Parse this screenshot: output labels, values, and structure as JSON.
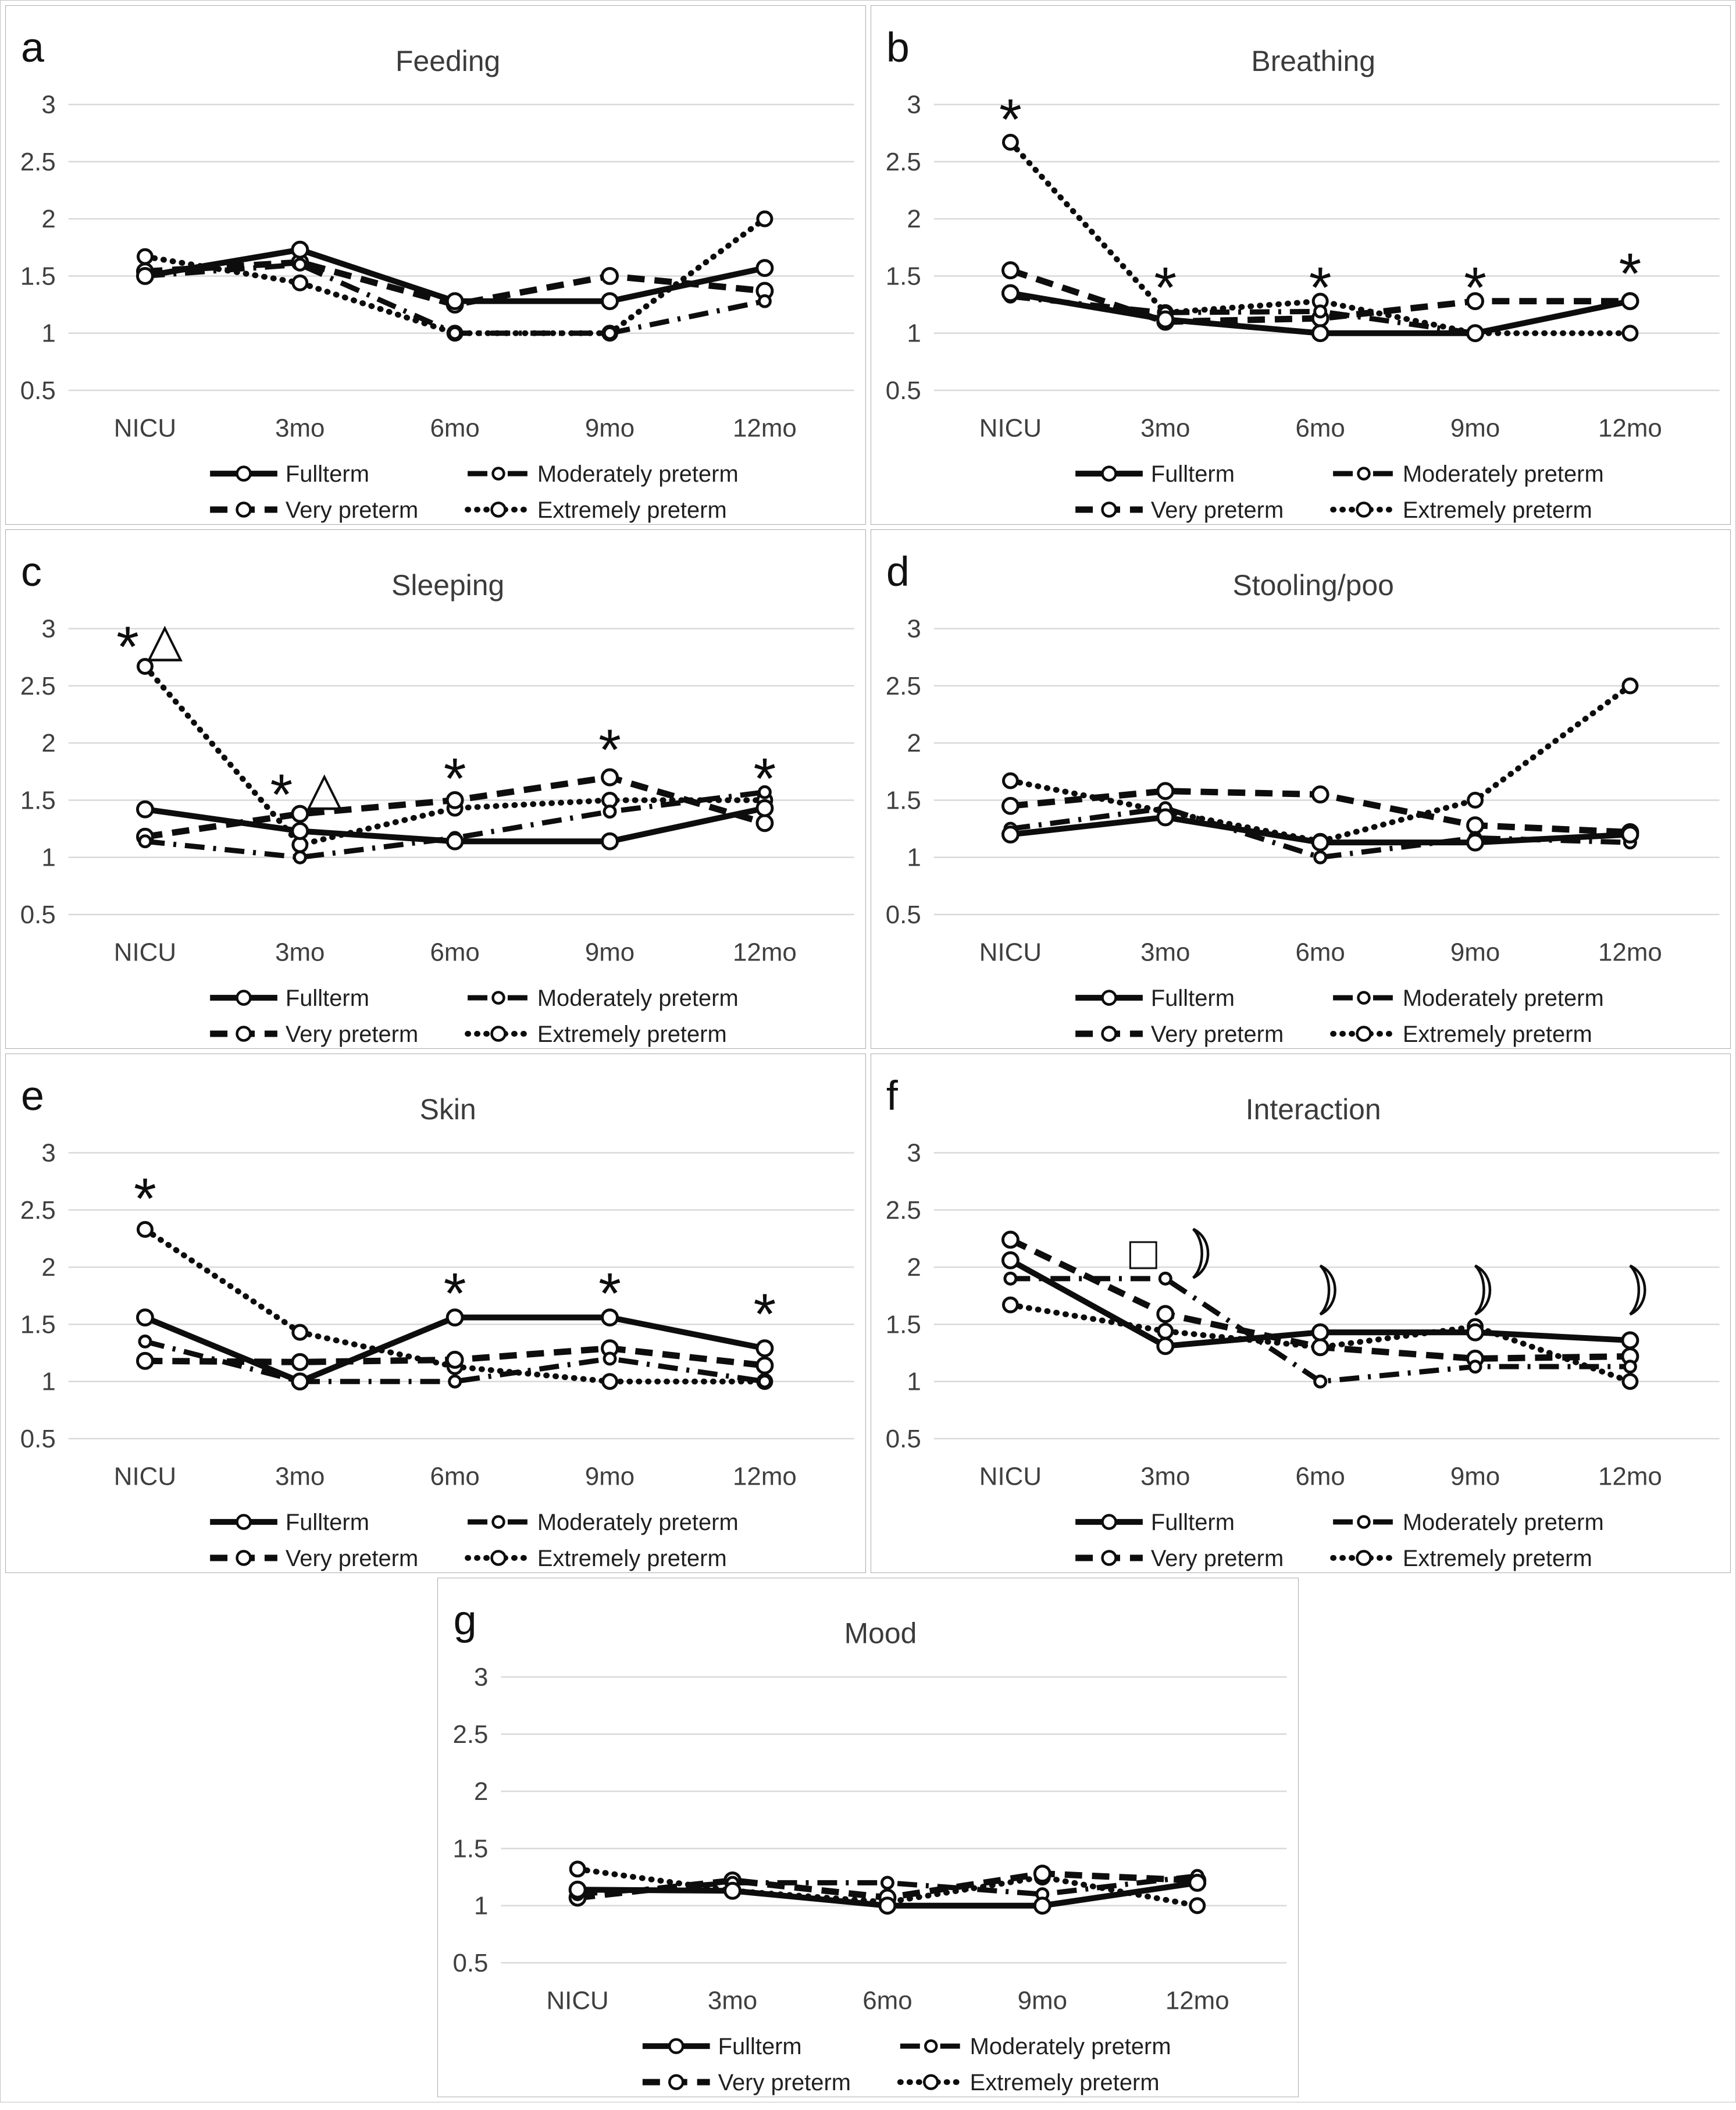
{
  "figure": {
    "y_ticks": [
      "3",
      "2.5",
      "2",
      "1.5",
      "1",
      "0.5"
    ],
    "y_tick_values": [
      3,
      2.5,
      2,
      1.5,
      1,
      0.5
    ],
    "categories": [
      "NICU",
      "3mo",
      "6mo",
      "9mo",
      "12mo"
    ],
    "marker": "open-circle",
    "line_color": "#0d0d0d",
    "gridline_color": "#d9d9d9",
    "legend": [
      {
        "key": "fullterm",
        "label": "Fullterm",
        "line_style": "solid"
      },
      {
        "key": "moderately-preterm",
        "label": "Moderately preterm",
        "line_style": "dash-dot"
      },
      {
        "key": "very-preterm",
        "label": "Very preterm",
        "line_style": "dashed"
      },
      {
        "key": "extremely-preterm",
        "label": "Extremely preterm",
        "line_style": "dotted"
      }
    ]
  },
  "chart_data": [
    {
      "panel": "a",
      "title": "Feeding",
      "type": "line",
      "ylim": [
        0.5,
        3
      ],
      "grid": true,
      "categories": [
        "NICU",
        "3mo",
        "6mo",
        "9mo",
        "12mo"
      ],
      "series": [
        {
          "name": "Fullterm",
          "line_style": "solid",
          "values": [
            1.5,
            1.73,
            1.28,
            1.28,
            1.57
          ]
        },
        {
          "name": "Moderately preterm",
          "line_style": "dash-dot",
          "values": [
            1.5,
            1.6,
            1.0,
            1.0,
            1.28
          ]
        },
        {
          "name": "Very preterm",
          "line_style": "dashed",
          "values": [
            1.54,
            1.62,
            1.25,
            1.5,
            1.37
          ]
        },
        {
          "name": "Extremely preterm",
          "line_style": "dotted",
          "values": [
            1.67,
            1.44,
            1.0,
            1.0,
            2.0
          ]
        }
      ],
      "annotations": []
    },
    {
      "panel": "b",
      "title": "Breathing",
      "type": "line",
      "ylim": [
        0.5,
        3
      ],
      "grid": true,
      "categories": [
        "NICU",
        "3mo",
        "6mo",
        "9mo",
        "12mo"
      ],
      "series": [
        {
          "name": "Fullterm",
          "line_style": "solid",
          "values": [
            1.35,
            1.12,
            1.0,
            1.0,
            1.28
          ]
        },
        {
          "name": "Moderately preterm",
          "line_style": "dash-dot",
          "values": [
            1.32,
            1.18,
            1.19,
            1.0,
            1.28
          ]
        },
        {
          "name": "Very preterm",
          "line_style": "dashed",
          "values": [
            1.55,
            1.1,
            1.13,
            1.28,
            1.28
          ]
        },
        {
          "name": "Extremely preterm",
          "line_style": "dotted",
          "values": [
            2.67,
            1.18,
            1.28,
            1.0,
            1.0
          ]
        }
      ],
      "annotations": [
        {
          "category_index": 0,
          "symbol": "*",
          "value": 2.95
        },
        {
          "category_index": 1,
          "symbol": "*",
          "value": 1.48
        },
        {
          "category_index": 2,
          "symbol": "*",
          "value": 1.48
        },
        {
          "category_index": 3,
          "symbol": "*",
          "value": 1.48
        },
        {
          "category_index": 4,
          "symbol": "*",
          "value": 1.6
        }
      ]
    },
    {
      "panel": "c",
      "title": "Sleeping",
      "type": "line",
      "ylim": [
        0.5,
        3
      ],
      "grid": true,
      "categories": [
        "NICU",
        "3mo",
        "6mo",
        "9mo",
        "12mo"
      ],
      "series": [
        {
          "name": "Fullterm",
          "line_style": "solid",
          "values": [
            1.42,
            1.23,
            1.14,
            1.14,
            1.43
          ]
        },
        {
          "name": "Moderately preterm",
          "line_style": "dash-dot",
          "values": [
            1.14,
            1.0,
            1.17,
            1.4,
            1.57
          ]
        },
        {
          "name": "Very preterm",
          "line_style": "dashed",
          "values": [
            1.18,
            1.38,
            1.5,
            1.7,
            1.3
          ]
        },
        {
          "name": "Extremely preterm",
          "line_style": "dotted",
          "values": [
            2.67,
            1.11,
            1.43,
            1.5,
            1.5
          ]
        }
      ],
      "annotations": [
        {
          "category_index": 0,
          "symbol": "*",
          "value": 2.92,
          "dx": -30
        },
        {
          "category_index": 0,
          "symbol": "△",
          "value": 2.9,
          "dx": 34
        },
        {
          "category_index": 1,
          "symbol": "*",
          "value": 1.63,
          "dx": -32
        },
        {
          "category_index": 1,
          "symbol": "△",
          "value": 1.6,
          "dx": 42
        },
        {
          "category_index": 2,
          "symbol": "*",
          "value": 1.77
        },
        {
          "category_index": 3,
          "symbol": "*",
          "value": 2.02
        },
        {
          "category_index": 4,
          "symbol": "*",
          "value": 1.77
        }
      ]
    },
    {
      "panel": "d",
      "title": "Stooling/poo",
      "type": "line",
      "ylim": [
        0.5,
        3
      ],
      "grid": true,
      "categories": [
        "NICU",
        "3mo",
        "6mo",
        "9mo",
        "12mo"
      ],
      "series": [
        {
          "name": "Fullterm",
          "line_style": "solid",
          "values": [
            1.2,
            1.35,
            1.13,
            1.13,
            1.2
          ]
        },
        {
          "name": "Moderately preterm",
          "line_style": "dash-dot",
          "values": [
            1.25,
            1.43,
            1.0,
            1.17,
            1.13
          ]
        },
        {
          "name": "Very preterm",
          "line_style": "dashed",
          "values": [
            1.45,
            1.58,
            1.55,
            1.28,
            1.22
          ]
        },
        {
          "name": "Extremely preterm",
          "line_style": "dotted",
          "values": [
            1.67,
            1.4,
            1.14,
            1.5,
            2.5
          ]
        }
      ],
      "annotations": []
    },
    {
      "panel": "e",
      "title": "Skin",
      "type": "line",
      "ylim": [
        0.5,
        3
      ],
      "grid": true,
      "categories": [
        "NICU",
        "3mo",
        "6mo",
        "9mo",
        "12mo"
      ],
      "series": [
        {
          "name": "Fullterm",
          "line_style": "solid",
          "values": [
            1.56,
            1.0,
            1.56,
            1.56,
            1.29
          ]
        },
        {
          "name": "Moderately preterm",
          "line_style": "dash-dot",
          "values": [
            1.35,
            1.0,
            1.0,
            1.2,
            1.0
          ]
        },
        {
          "name": "Very preterm",
          "line_style": "dashed",
          "values": [
            1.18,
            1.17,
            1.19,
            1.29,
            1.14
          ]
        },
        {
          "name": "Extremely preterm",
          "line_style": "dotted",
          "values": [
            2.33,
            1.43,
            1.13,
            1.0,
            1.0
          ]
        }
      ],
      "annotations": [
        {
          "category_index": 0,
          "symbol": "*",
          "value": 2.68
        },
        {
          "category_index": 2,
          "symbol": "*",
          "value": 1.85
        },
        {
          "category_index": 3,
          "symbol": "*",
          "value": 1.85
        },
        {
          "category_index": 4,
          "symbol": "*",
          "value": 1.67
        }
      ]
    },
    {
      "panel": "f",
      "title": "Interaction",
      "type": "line",
      "ylim": [
        0.5,
        3
      ],
      "grid": true,
      "categories": [
        "NICU",
        "3mo",
        "6mo",
        "9mo",
        "12mo"
      ],
      "series": [
        {
          "name": "Fullterm",
          "line_style": "solid",
          "values": [
            2.06,
            1.31,
            1.43,
            1.43,
            1.36
          ]
        },
        {
          "name": "Moderately preterm",
          "line_style": "dash-dot",
          "values": [
            1.9,
            1.9,
            1.0,
            1.13,
            1.13
          ]
        },
        {
          "name": "Very preterm",
          "line_style": "dashed",
          "values": [
            2.24,
            1.59,
            1.3,
            1.2,
            1.22
          ]
        },
        {
          "name": "Extremely preterm",
          "line_style": "dotted",
          "values": [
            1.67,
            1.44,
            1.3,
            1.48,
            1.0
          ]
        }
      ],
      "annotations": [
        {
          "category_index": 1,
          "symbol": "□",
          "value": 2.12,
          "dx": -38
        },
        {
          "category_index": 1,
          "symbol": "crescent",
          "value": 2.12,
          "dx": 48
        },
        {
          "category_index": 2,
          "symbol": "crescent",
          "value": 1.8
        },
        {
          "category_index": 3,
          "symbol": "crescent",
          "value": 1.8
        },
        {
          "category_index": 4,
          "symbol": "crescent",
          "value": 1.8
        }
      ]
    },
    {
      "panel": "g",
      "title": "Mood",
      "type": "line",
      "ylim": [
        0.5,
        3
      ],
      "grid": true,
      "categories": [
        "NICU",
        "3mo",
        "6mo",
        "9mo",
        "12mo"
      ],
      "series": [
        {
          "name": "Fullterm",
          "line_style": "solid",
          "values": [
            1.14,
            1.13,
            1.0,
            1.0,
            1.2
          ]
        },
        {
          "name": "Moderately preterm",
          "line_style": "dash-dot",
          "values": [
            1.1,
            1.2,
            1.2,
            1.1,
            1.26
          ]
        },
        {
          "name": "Very preterm",
          "line_style": "dashed",
          "values": [
            1.07,
            1.22,
            1.07,
            1.28,
            1.22
          ]
        },
        {
          "name": "Extremely preterm",
          "line_style": "dotted",
          "values": [
            1.32,
            1.13,
            1.03,
            1.25,
            1.0
          ]
        }
      ],
      "annotations": []
    }
  ]
}
